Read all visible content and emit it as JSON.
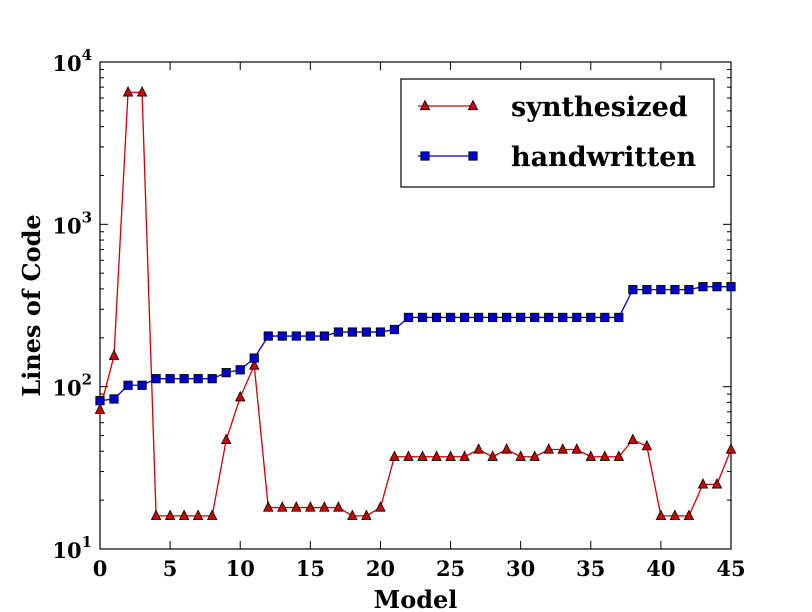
{
  "chart_data": {
    "type": "line",
    "xlabel": "Model",
    "ylabel": "Lines of Code",
    "xlim": [
      0,
      45
    ],
    "ylim": [
      10,
      10000
    ],
    "yscale": "log",
    "x_ticks": [
      0,
      5,
      10,
      15,
      20,
      25,
      30,
      35,
      40,
      45
    ],
    "y_ticks": [
      {
        "value": 10,
        "base": "10",
        "exp": "1"
      },
      {
        "value": 100,
        "base": "10",
        "exp": "2"
      },
      {
        "value": 1000,
        "base": "10",
        "exp": "3"
      },
      {
        "value": 10000,
        "base": "10",
        "exp": "4"
      }
    ],
    "legend_position": "top-right",
    "series": [
      {
        "name": "synthesized",
        "color": "#cc0000",
        "marker": "triangle",
        "x": [
          0,
          1,
          2,
          3,
          4,
          5,
          6,
          7,
          8,
          9,
          10,
          11,
          12,
          13,
          14,
          15,
          16,
          17,
          18,
          19,
          20,
          21,
          22,
          23,
          24,
          25,
          26,
          27,
          28,
          29,
          30,
          31,
          32,
          33,
          34,
          35,
          36,
          37,
          38,
          39,
          40,
          41,
          42,
          43,
          44,
          45
        ],
        "values": [
          72,
          155,
          6500,
          6500,
          16,
          16,
          16,
          16,
          16,
          47,
          86,
          135,
          18,
          18,
          18,
          18,
          18,
          18,
          16,
          16,
          18,
          37,
          37,
          37,
          37,
          37,
          37,
          41,
          37,
          41,
          37,
          37,
          41,
          41,
          41,
          37,
          37,
          37,
          47,
          43,
          16,
          16,
          16,
          25,
          25,
          41
        ]
      },
      {
        "name": "handwritten",
        "color": "#0000cc",
        "marker": "square",
        "x": [
          0,
          1,
          2,
          3,
          4,
          5,
          6,
          7,
          8,
          9,
          10,
          11,
          12,
          13,
          14,
          15,
          16,
          17,
          18,
          19,
          20,
          21,
          22,
          23,
          24,
          25,
          26,
          27,
          28,
          29,
          30,
          31,
          32,
          33,
          34,
          35,
          36,
          37,
          38,
          39,
          40,
          41,
          42,
          43,
          44,
          45
        ],
        "values": [
          82,
          84,
          102,
          102,
          112,
          112,
          112,
          112,
          112,
          122,
          127,
          150,
          205,
          205,
          205,
          205,
          205,
          217,
          217,
          217,
          217,
          225,
          267,
          267,
          267,
          267,
          267,
          267,
          267,
          267,
          267,
          267,
          267,
          267,
          267,
          267,
          267,
          267,
          396,
          396,
          396,
          396,
          396,
          413,
          413,
          413
        ]
      }
    ]
  }
}
